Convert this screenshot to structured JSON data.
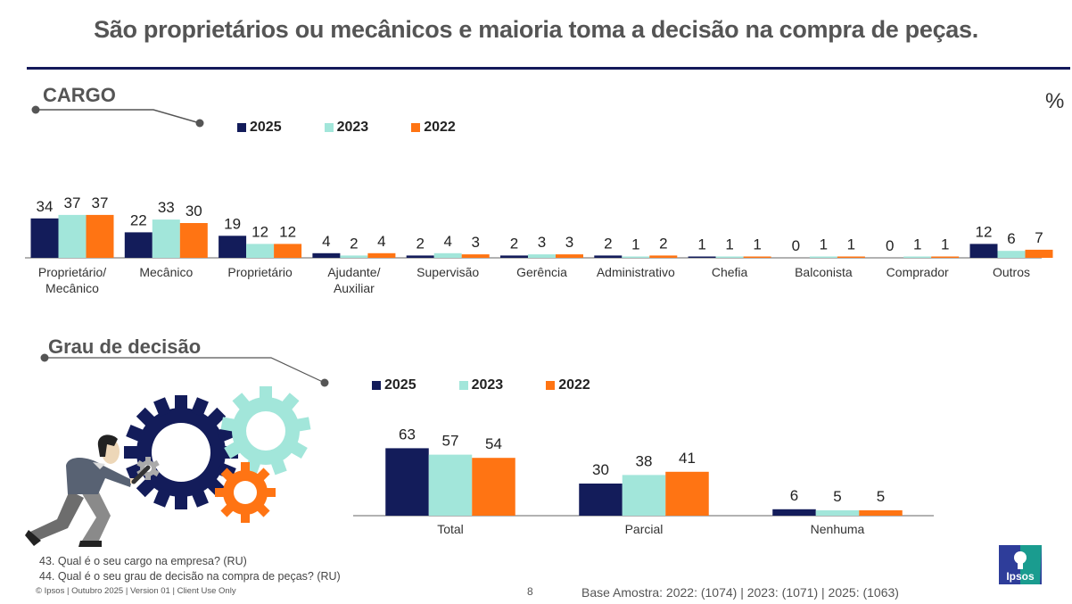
{
  "header": {
    "title": "São proprietários ou mecânicos e maioria toma a decisão na compra de peças.",
    "unit": "%"
  },
  "colors": {
    "y2025": "#131c5a",
    "y2023": "#a2e6da",
    "y2022": "#ff7413",
    "title_rule": "#13195a"
  },
  "sections": {
    "cargo": {
      "title": "CARGO"
    },
    "decisao": {
      "title": "Grau de decisão"
    }
  },
  "legend": [
    {
      "label": "2025",
      "color": "#131c5a"
    },
    {
      "label": "2023",
      "color": "#a2e6da"
    },
    {
      "label": "2022",
      "color": "#ff7413"
    }
  ],
  "chart_data": [
    {
      "type": "bar",
      "title": "CARGO",
      "xlabel": "",
      "ylabel": "%",
      "ylim": [
        0,
        40
      ],
      "grid": false,
      "legend_position": "top-left",
      "categories": [
        "Proprietário/\nMecânico",
        "Mecânico",
        "Proprietário",
        "Ajudante/\nAuxiliar",
        "Supervisão",
        "Gerência",
        "Administrativo",
        "Chefia",
        "Balconista",
        "Comprador",
        "Outros"
      ],
      "series": [
        {
          "name": "2025",
          "color": "#131c5a",
          "values": [
            34,
            22,
            19,
            4,
            2,
            2,
            2,
            1,
            0,
            0,
            12
          ]
        },
        {
          "name": "2023",
          "color": "#a2e6da",
          "values": [
            37,
            33,
            12,
            2,
            4,
            3,
            1,
            1,
            1,
            1,
            6
          ]
        },
        {
          "name": "2022",
          "color": "#ff7413",
          "values": [
            37,
            30,
            12,
            4,
            3,
            3,
            2,
            1,
            1,
            1,
            7
          ]
        }
      ]
    },
    {
      "type": "bar",
      "title": "Grau de decisão",
      "xlabel": "",
      "ylabel": "%",
      "ylim": [
        0,
        70
      ],
      "grid": false,
      "legend_position": "top-left",
      "categories": [
        "Total",
        "Parcial",
        "Nenhuma"
      ],
      "series": [
        {
          "name": "2025",
          "color": "#131c5a",
          "values": [
            63,
            30,
            6
          ]
        },
        {
          "name": "2023",
          "color": "#a2e6da",
          "values": [
            57,
            38,
            5
          ]
        },
        {
          "name": "2022",
          "color": "#ff7413",
          "values": [
            54,
            41,
            5
          ]
        }
      ]
    }
  ],
  "footer": {
    "q43": "43. Qual é o seu cargo na empresa? (RU)",
    "q44": "44. Qual é o seu grau de decisão na compra de peças? (RU)",
    "copyright": "© Ipsos | Outubro 2025 | Version 01 | Client Use Only",
    "page": "8",
    "base": "Base Amostra: 2022: (1074) | 2023: (1071) | 2025: (1063)"
  },
  "logo": {
    "text": "Ipsos"
  }
}
